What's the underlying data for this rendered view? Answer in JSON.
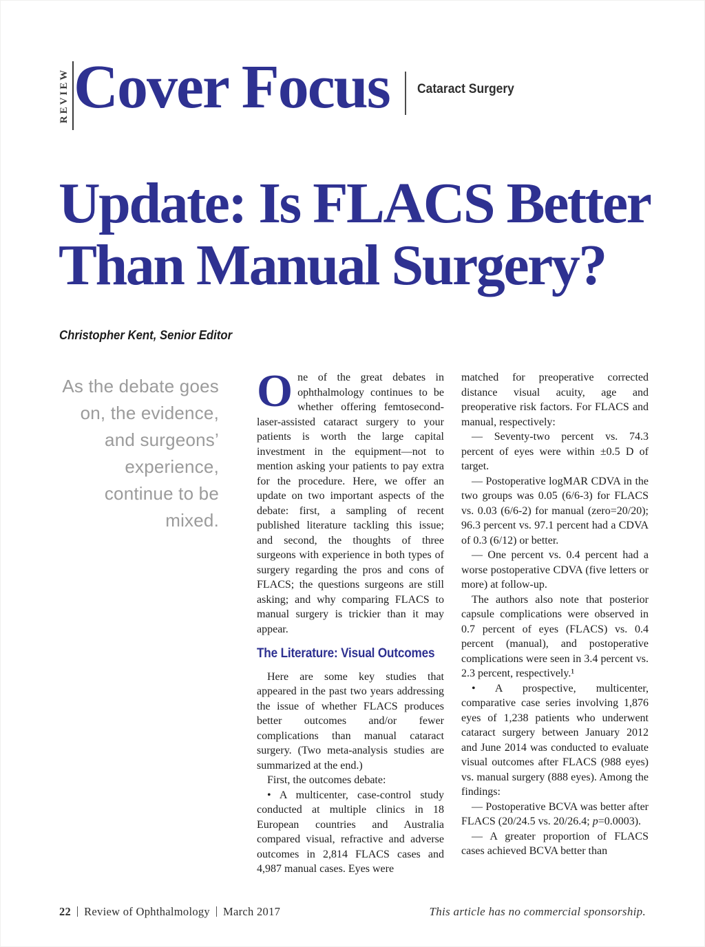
{
  "colors": {
    "brand_navy": "#2e3191",
    "pull_quote_gray": "#9b9b9b"
  },
  "masthead": {
    "review_vertical": "REVIEW",
    "section_title": "Cover Focus",
    "section_tag": "Cataract Surgery"
  },
  "article": {
    "title_line1": "Update: Is FLACS Better",
    "title_line2": "Than Manual Surgery?",
    "byline": "Christopher Kent, Senior Editor",
    "pull_quote": "As the debate goes on, the evidence, and surgeons’ experience, continue to be mixed.",
    "dropcap": "O",
    "col2": {
      "p1_rest": "ne of the great debates in ophthalmology continues to be whether offering femtosecond-laser-assisted cataract surgery to your patients is worth the large capital investment in the equipment—not to mention asking your patients to pay extra for the procedure. Here, we offer an update on two important aspects of the debate: first, a sampling of recent published literature tackling this issue; and second, the thoughts of three surgeons with experience in both types of surgery regarding the pros and cons of FLACS; the questions surgeons are still asking; and why comparing FLACS to manual surgery is trickier than it may appear.",
      "heading": "The Literature: Visual Outcomes",
      "p2": "Here are some key studies that appeared in the past two years addressing the issue of whether FLACS produces better outcomes and/or fewer complications than manual cataract surgery. (Two meta-analysis studies are summarized at the end.)",
      "p3": "First, the outcomes debate:",
      "p4": "• A multicenter, case-control study conducted at multiple clinics in 18 European countries and Australia compared visual, refractive and adverse outcomes in 2,814 FLACS cases and 4,987 manual cases. Eyes were"
    },
    "col3": {
      "p5": "matched for preoperative corrected distance visual acuity, age and preoperative risk factors. For FLACS and manual, respectively:",
      "p6": "— Seventy-two percent vs. 74.3 percent of eyes were within ±0.5 D of target.",
      "p7": "— Postoperative logMAR CDVA in the two groups was 0.05 (6/6-3) for FLACS vs. 0.03 (6/6-2) for manual (zero=20/20); 96.3 percent vs. 97.1 percent had a CDVA of 0.3 (6/12) or better.",
      "p8": "— One percent vs. 0.4 percent had a worse postoperative CDVA (five letters or more) at follow-up.",
      "p9": "The authors also note that posterior capsule complications were observed in 0.7 percent of eyes (FLACS) vs. 0.4 percent (manual), and postoperative complications were seen in 3.4 percent vs. 2.3 percent, respectively.¹",
      "p10": "• A prospective, multicenter, comparative case series involving 1,876 eyes of 1,238 patients who underwent cataract surgery between January 2012 and June 2014 was conducted to evaluate visual outcomes after FLACS (988 eyes) vs. manual surgery (888 eyes). Among the findings:",
      "p11_pre": "— Postoperative BCVA was better after FLACS (20/24.5 vs. 20/26.4; ",
      "p11_p": "p",
      "p11_post": "=0.0003).",
      "p12": "— A greater proportion of FLACS cases achieved BCVA better than"
    }
  },
  "footer": {
    "page_number": "22",
    "publication": "Review of Ophthalmology",
    "date": "March 2017",
    "sponsorship_note": "This article has no commercial sponsorship."
  }
}
